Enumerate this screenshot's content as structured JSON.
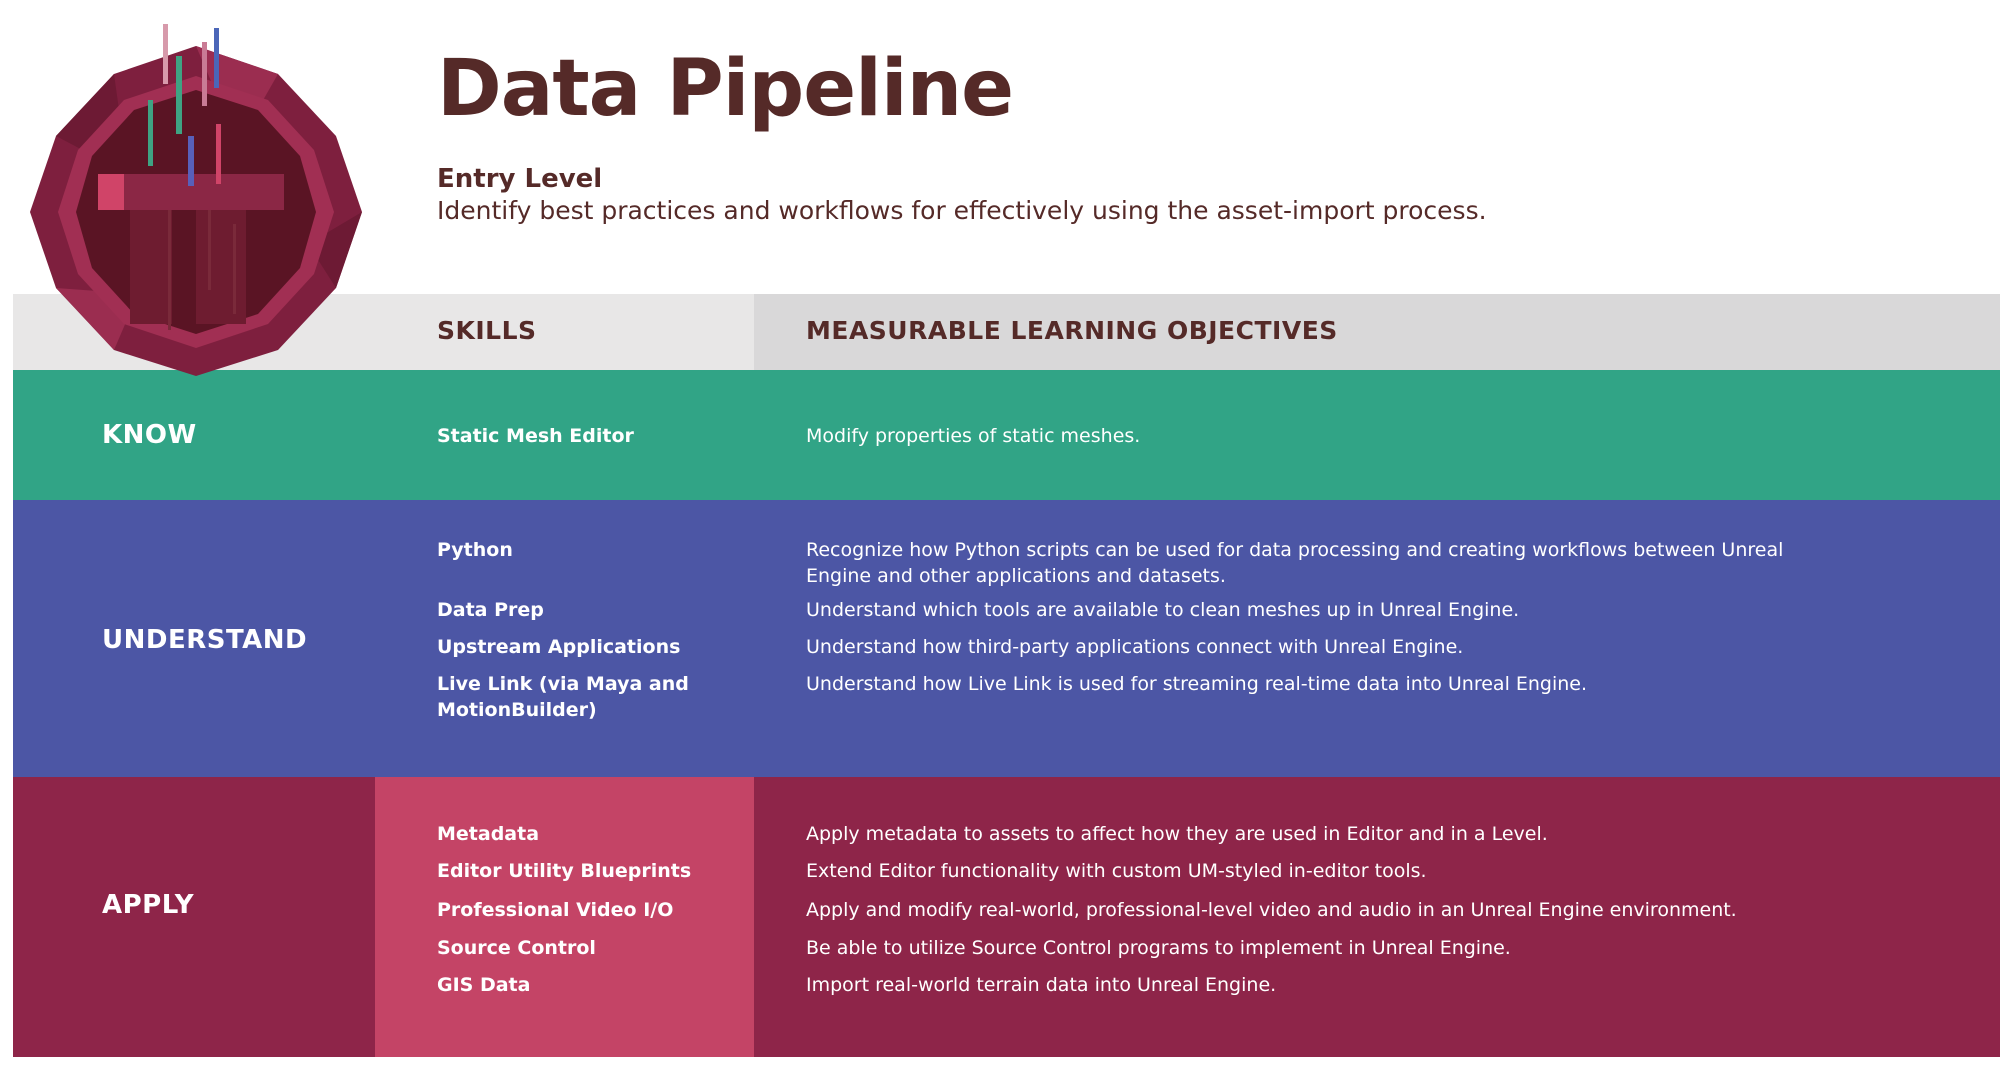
{
  "header": {
    "title": "Data Pipeline",
    "level": "Entry Level",
    "description": "Identify best practices and workflows for effectively using the asset-import process."
  },
  "columns": {
    "skills": "SKILLS",
    "objectives": "MEASURABLE LEARNING OBJECTIVES"
  },
  "badge": {
    "icon": "data-pipeline-badge-icon"
  },
  "colors": {
    "title_text": "#552a28",
    "know": "#31a486",
    "understand": "#4c56a5",
    "apply": "#8e2549",
    "apply_skills": "#c44466",
    "header_row": "#e8e7e7"
  },
  "sections": {
    "know": {
      "label": "KNOW",
      "rows": [
        {
          "skill": "Static Mesh Editor",
          "objective": "Modify properties of static meshes."
        }
      ]
    },
    "understand": {
      "label": "UNDERSTAND",
      "rows": [
        {
          "skill": "Python",
          "objective": "Recognize how Python scripts can be used for data processing and creating workflows between Unreal Engine and other applications and datasets."
        },
        {
          "skill": "Data Prep",
          "objective": "Understand which tools are available to clean meshes up in Unreal Engine."
        },
        {
          "skill": "Upstream Applications",
          "objective": "Understand how third-party applications connect with Unreal Engine."
        },
        {
          "skill": "Live Link (via Maya and MotionBuilder)",
          "objective": "Understand how Live Link is used for streaming real-time data into Unreal Engine."
        }
      ]
    },
    "apply": {
      "label": "APPLY",
      "rows": [
        {
          "skill": "Metadata",
          "objective": "Apply metadata to assets to affect how they are used in Editor and in a Level."
        },
        {
          "skill": "Editor Utility Blueprints",
          "objective": "Extend Editor functionality with custom UM-styled in-editor tools."
        },
        {
          "skill": "Professional Video I/O",
          "objective": "Apply and modify real-world, professional-level video and audio in an Unreal Engine environment."
        },
        {
          "skill": "Source Control",
          "objective": "Be able to utilize Source Control programs to implement in Unreal Engine."
        },
        {
          "skill": "GIS Data",
          "objective": "Import real-world terrain data into Unreal Engine."
        }
      ]
    }
  }
}
